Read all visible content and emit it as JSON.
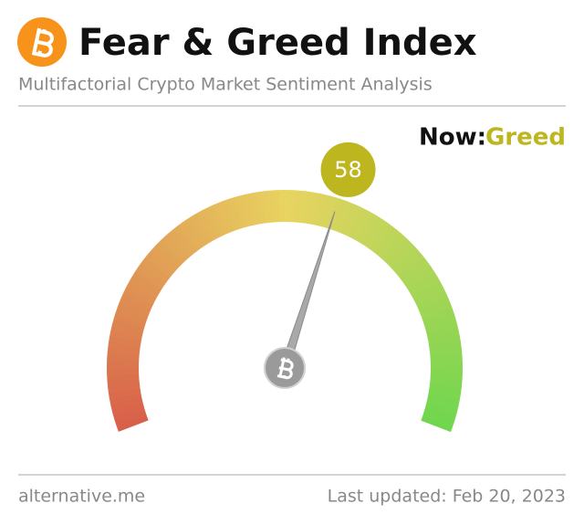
{
  "chart_data": {
    "type": "gauge",
    "title": "Fear & Greed Index",
    "subtitle": "Multifactorial Crypto Market Sentiment Analysis",
    "status_label": "Now:",
    "status": "Greed",
    "status_color": "#bdb61f",
    "value": 58,
    "ylim": [
      0,
      100
    ],
    "source": "alternative.me",
    "updated": "Last updated: Feb 20, 2023"
  }
}
